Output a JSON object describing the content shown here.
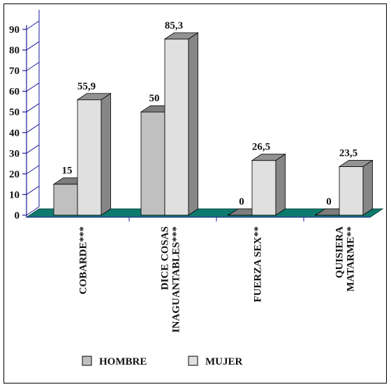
{
  "chart_data": {
    "type": "bar",
    "title": "",
    "xlabel": "",
    "ylabel": "",
    "ylim": [
      0,
      90
    ],
    "yticks": [
      0,
      10,
      20,
      30,
      40,
      50,
      60,
      70,
      80,
      90
    ],
    "grid": false,
    "legend_position": "bottom",
    "categories": [
      [
        "COBARDE***"
      ],
      [
        "DICE COSAS",
        "INAGUANTABLES***"
      ],
      [
        "FUERZA SEX**"
      ],
      [
        "QUISIERA",
        "MATARME**"
      ]
    ],
    "series": [
      {
        "name": "HOMBRE",
        "values": [
          15,
          50,
          0,
          0
        ],
        "labels": [
          "15",
          "50",
          "0",
          "0"
        ],
        "color": "#c0c0c0"
      },
      {
        "name": "MUJER",
        "values": [
          55.9,
          85.3,
          26.5,
          23.5
        ],
        "labels": [
          "55,9",
          "85,3",
          "26,5",
          "23,5"
        ],
        "color": "#e0e0e0"
      }
    ],
    "colors": {
      "axis": "#1a1a9a",
      "floor": "#0e7a6e",
      "edge": "#000000"
    }
  }
}
